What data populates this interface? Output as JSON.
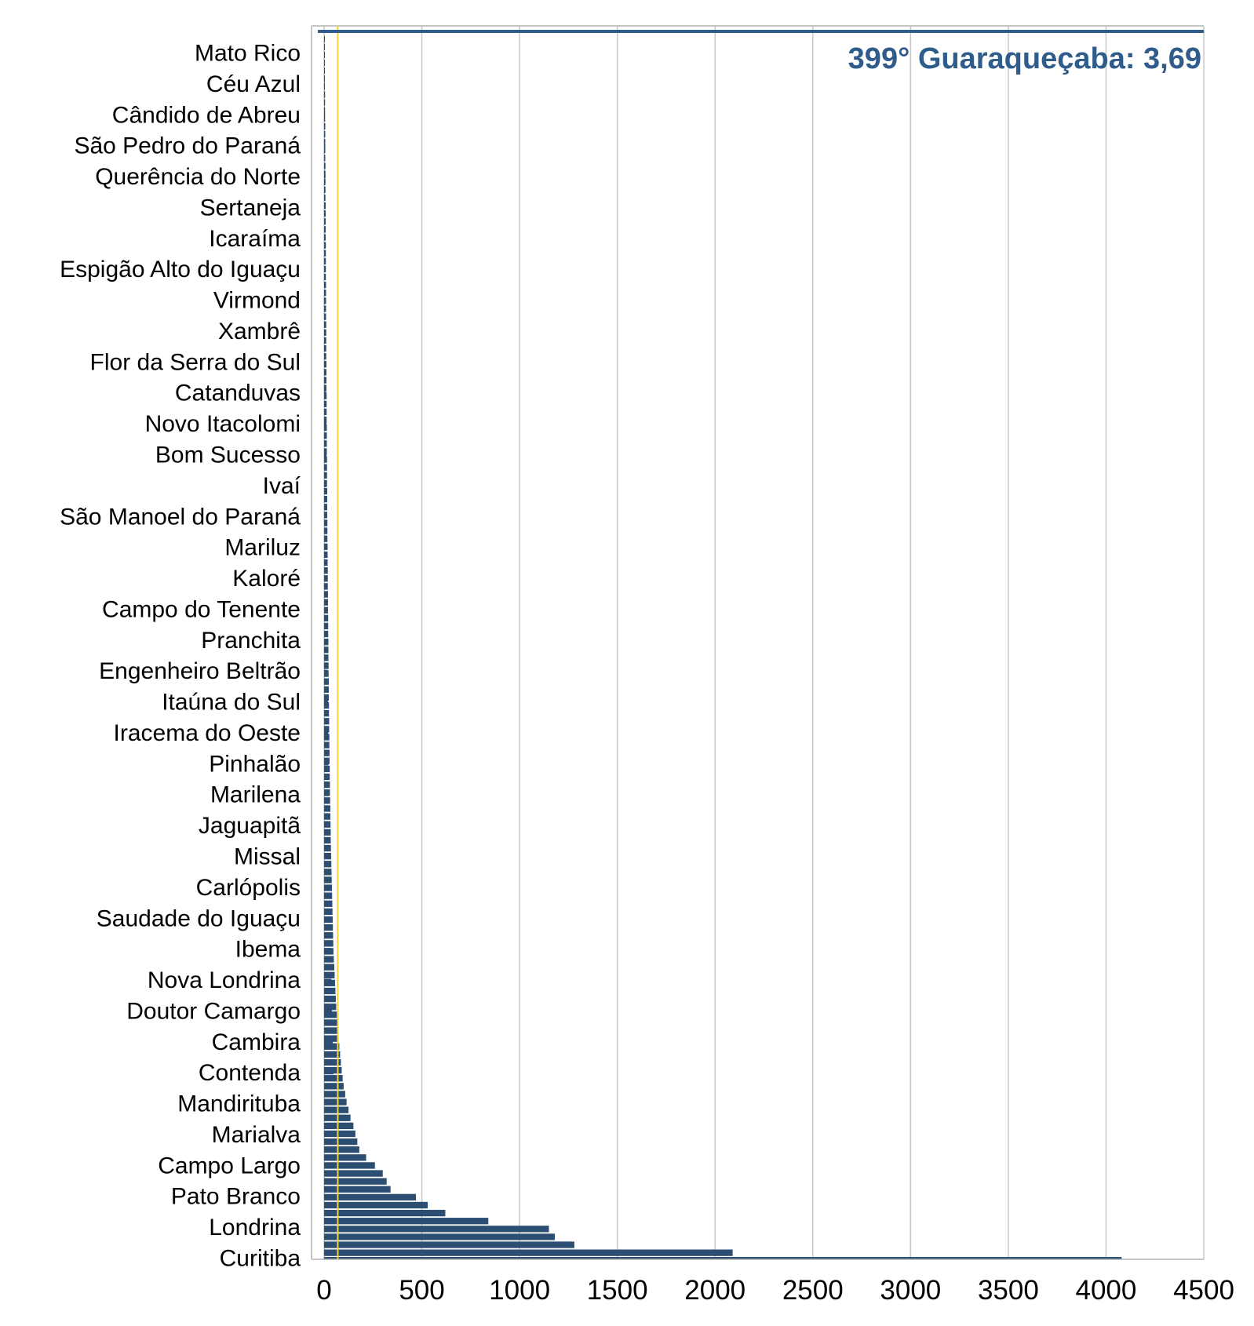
{
  "chart_data": {
    "type": "bar",
    "orientation": "horizontal",
    "categories": [
      "Mato Rico",
      "Céu Azul",
      "Cândido de Abreu",
      "São Pedro do Paraná",
      "Querência do Norte",
      "Sertaneja",
      "Icaraíma",
      "Espigão Alto do Iguaçu",
      "Virmond",
      "Xambrê",
      "Flor da Serra do Sul",
      "Catanduvas",
      "Novo Itacolomi",
      "Bom Sucesso",
      "Ivaí",
      "São Manoel do Paraná",
      "Mariluz",
      "Kaloré",
      "Campo do Tenente",
      "Pranchita",
      "Engenheiro Beltrão",
      "Itaúna do Sul",
      "Iracema do Oeste",
      "Pinhalão",
      "Marilena",
      "Jaguapitã",
      "Missal",
      "Carlópolis",
      "Saudade do Iguaçu",
      "Ibema",
      "Nova Londrina",
      "Doutor Camargo",
      "Cambira",
      "Contenda",
      "Mandirituba",
      "Marialva",
      "Campo Largo",
      "Pato Branco",
      "Londrina",
      "Curitiba"
    ],
    "values": [
      3,
      4,
      5,
      6,
      7,
      7,
      8,
      8,
      9,
      10,
      10,
      11,
      12,
      12,
      13,
      14,
      15,
      16,
      17,
      18,
      19,
      20,
      21,
      22,
      24,
      25,
      27,
      29,
      31,
      34,
      37,
      40,
      44,
      48,
      55,
      65,
      95,
      160,
      330,
      4080
    ],
    "background_bar_values": [
      2,
      3,
      3,
      3,
      4,
      4,
      4,
      5,
      5,
      5,
      5,
      6,
      6,
      6,
      6,
      6,
      7,
      7,
      7,
      7,
      7,
      8,
      8,
      8,
      8,
      8,
      9,
      9,
      9,
      9,
      9,
      10,
      10,
      10,
      10,
      10,
      11,
      11,
      11,
      11,
      11,
      12,
      12,
      12,
      12,
      13,
      13,
      13,
      13,
      14,
      14,
      14,
      14,
      15,
      15,
      15,
      15,
      16,
      16,
      16,
      16,
      17,
      17,
      17,
      18,
      18,
      18,
      19,
      19,
      19,
      20,
      20,
      20,
      21,
      21,
      21,
      22,
      22,
      22,
      23,
      23,
      24,
      24,
      24,
      25,
      25,
      26,
      26,
      27,
      27,
      28,
      28,
      29,
      29,
      30,
      30,
      31,
      32,
      32,
      33,
      34,
      34,
      35,
      36,
      37,
      38,
      39,
      40,
      41,
      42,
      43,
      44,
      45,
      46,
      47,
      48,
      50,
      52,
      54,
      56,
      58,
      60,
      62,
      65,
      68,
      71,
      74,
      78,
      82,
      86,
      90,
      95,
      100,
      108,
      115,
      125,
      135,
      150,
      160,
      170,
      180,
      215,
      260,
      300,
      320,
      340,
      470,
      530,
      620,
      840,
      1150,
      1180,
      1280,
      2090
    ],
    "xlim": [
      0,
      4500
    ],
    "xticks": [
      "0",
      "500",
      "1000",
      "1500",
      "2000",
      "2500",
      "3000",
      "3500",
      "4000",
      "4500"
    ],
    "xtick_values": [
      0,
      500,
      1000,
      1500,
      2000,
      2500,
      3000,
      3500,
      4000,
      4500
    ],
    "reference_line_value": 70,
    "highlight": {
      "label": "399° Guaraqueçaba: 3,69",
      "value": 3.69
    },
    "grid": true,
    "legend": "none",
    "colors": {
      "bar": "#2b4e72",
      "highlight": "#2f5c8a",
      "reference_line": "#f2d33a",
      "grid": "#c8c8c8",
      "axis": "#b3b3b3"
    }
  }
}
